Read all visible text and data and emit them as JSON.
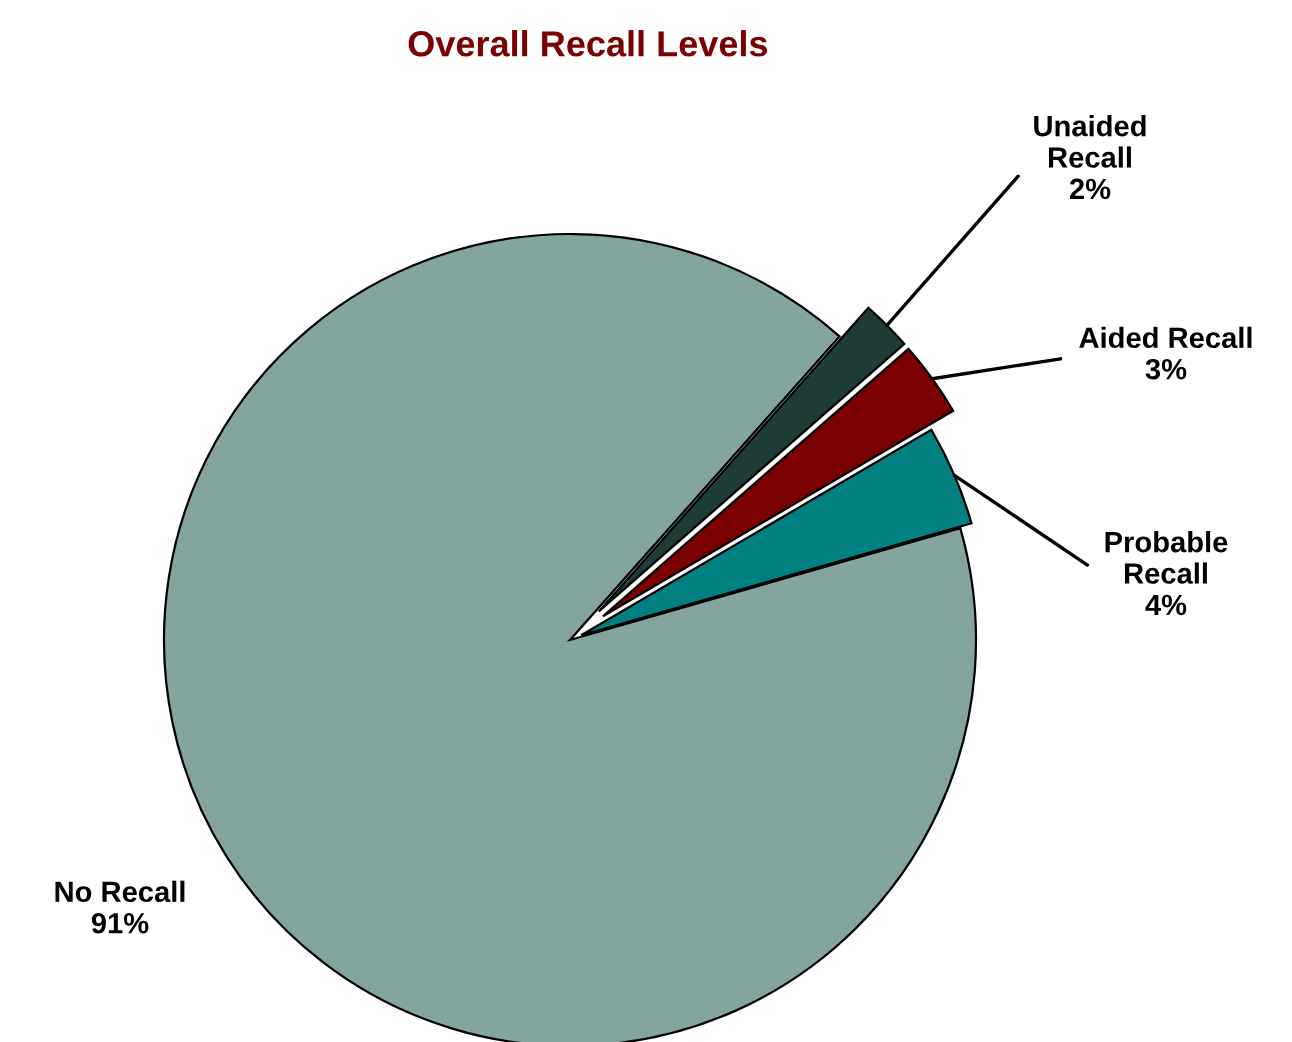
{
  "chart_data": {
    "type": "pie",
    "title": "Overall Recall Levels",
    "categories": [
      "Probable Recall",
      "Aided Recall",
      "Unaided Recall",
      "No Recall"
    ],
    "values": [
      4,
      3,
      2,
      91
    ],
    "colors": [
      "#008080",
      "#7b0000",
      "#1f3d36",
      "#84a59f"
    ],
    "value_labels": [
      "4%",
      "3%",
      "2%",
      "91%"
    ],
    "legend": false
  }
}
